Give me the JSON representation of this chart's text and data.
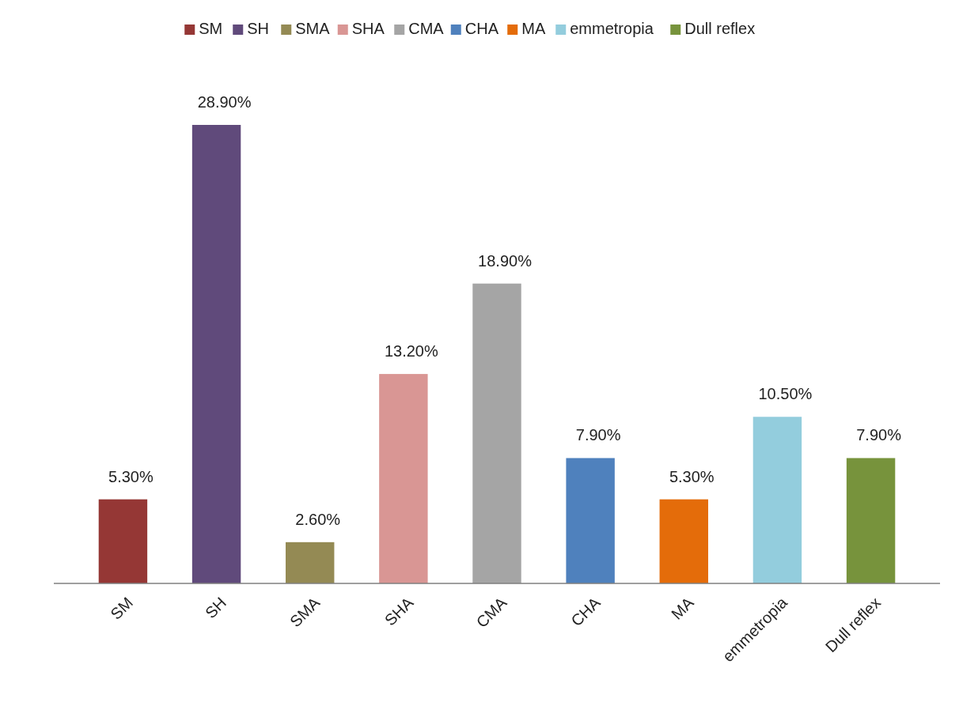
{
  "chart_data": {
    "type": "bar",
    "categories": [
      "SM",
      "SH",
      "SMA",
      "SHA",
      "CMA",
      "CHA",
      "MA",
      "emmetropia",
      "Dull reflex"
    ],
    "series": [
      {
        "name": "SM",
        "color": "#953735",
        "values": [
          5.3,
          null,
          null,
          null,
          null,
          null,
          null,
          null,
          null
        ],
        "value_labels": [
          "5.30%",
          null,
          null,
          null,
          null,
          null,
          null,
          null,
          null
        ]
      },
      {
        "name": "SH",
        "color": "#604a7b",
        "values": [
          null,
          28.9,
          null,
          null,
          null,
          null,
          null,
          null,
          null
        ],
        "value_labels": [
          null,
          "28.90%",
          null,
          null,
          null,
          null,
          null,
          null,
          null
        ]
      },
      {
        "name": "SMA",
        "color": "#948a54",
        "values": [
          null,
          null,
          2.6,
          null,
          null,
          null,
          null,
          null,
          null
        ],
        "value_labels": [
          null,
          null,
          "2.60%",
          null,
          null,
          null,
          null,
          null,
          null
        ]
      },
      {
        "name": "SHA",
        "color": "#d99694",
        "values": [
          null,
          null,
          null,
          13.2,
          null,
          null,
          null,
          null,
          null
        ],
        "value_labels": [
          null,
          null,
          null,
          "13.20%",
          null,
          null,
          null,
          null,
          null
        ]
      },
      {
        "name": "CMA",
        "color": "#a5a5a5",
        "values": [
          null,
          null,
          null,
          null,
          18.9,
          null,
          null,
          null,
          null
        ],
        "value_labels": [
          null,
          null,
          null,
          null,
          "18.90%",
          null,
          null,
          null,
          null
        ]
      },
      {
        "name": "CHA",
        "color": "#4f81bd",
        "values": [
          null,
          null,
          null,
          null,
          null,
          7.9,
          null,
          null,
          null
        ],
        "value_labels": [
          null,
          null,
          null,
          null,
          null,
          "7.90%",
          null,
          null,
          null
        ]
      },
      {
        "name": "MA",
        "color": "#e46c0a",
        "values": [
          null,
          null,
          null,
          null,
          null,
          null,
          5.3,
          null,
          null
        ],
        "value_labels": [
          null,
          null,
          null,
          null,
          null,
          null,
          "5.30%",
          null,
          null
        ]
      },
      {
        "name": "emmetropia",
        "color": "#93cddd",
        "values": [
          null,
          null,
          null,
          null,
          null,
          null,
          null,
          10.5,
          null
        ],
        "value_labels": [
          null,
          null,
          null,
          null,
          null,
          null,
          null,
          "10.50%",
          null
        ]
      },
      {
        "name": "Dull reflex",
        "color": "#77933c",
        "values": [
          null,
          null,
          null,
          null,
          null,
          null,
          null,
          null,
          7.9
        ],
        "value_labels": [
          null,
          null,
          null,
          null,
          null,
          null,
          null,
          null,
          "7.90%"
        ]
      }
    ],
    "legend": "top"
  }
}
